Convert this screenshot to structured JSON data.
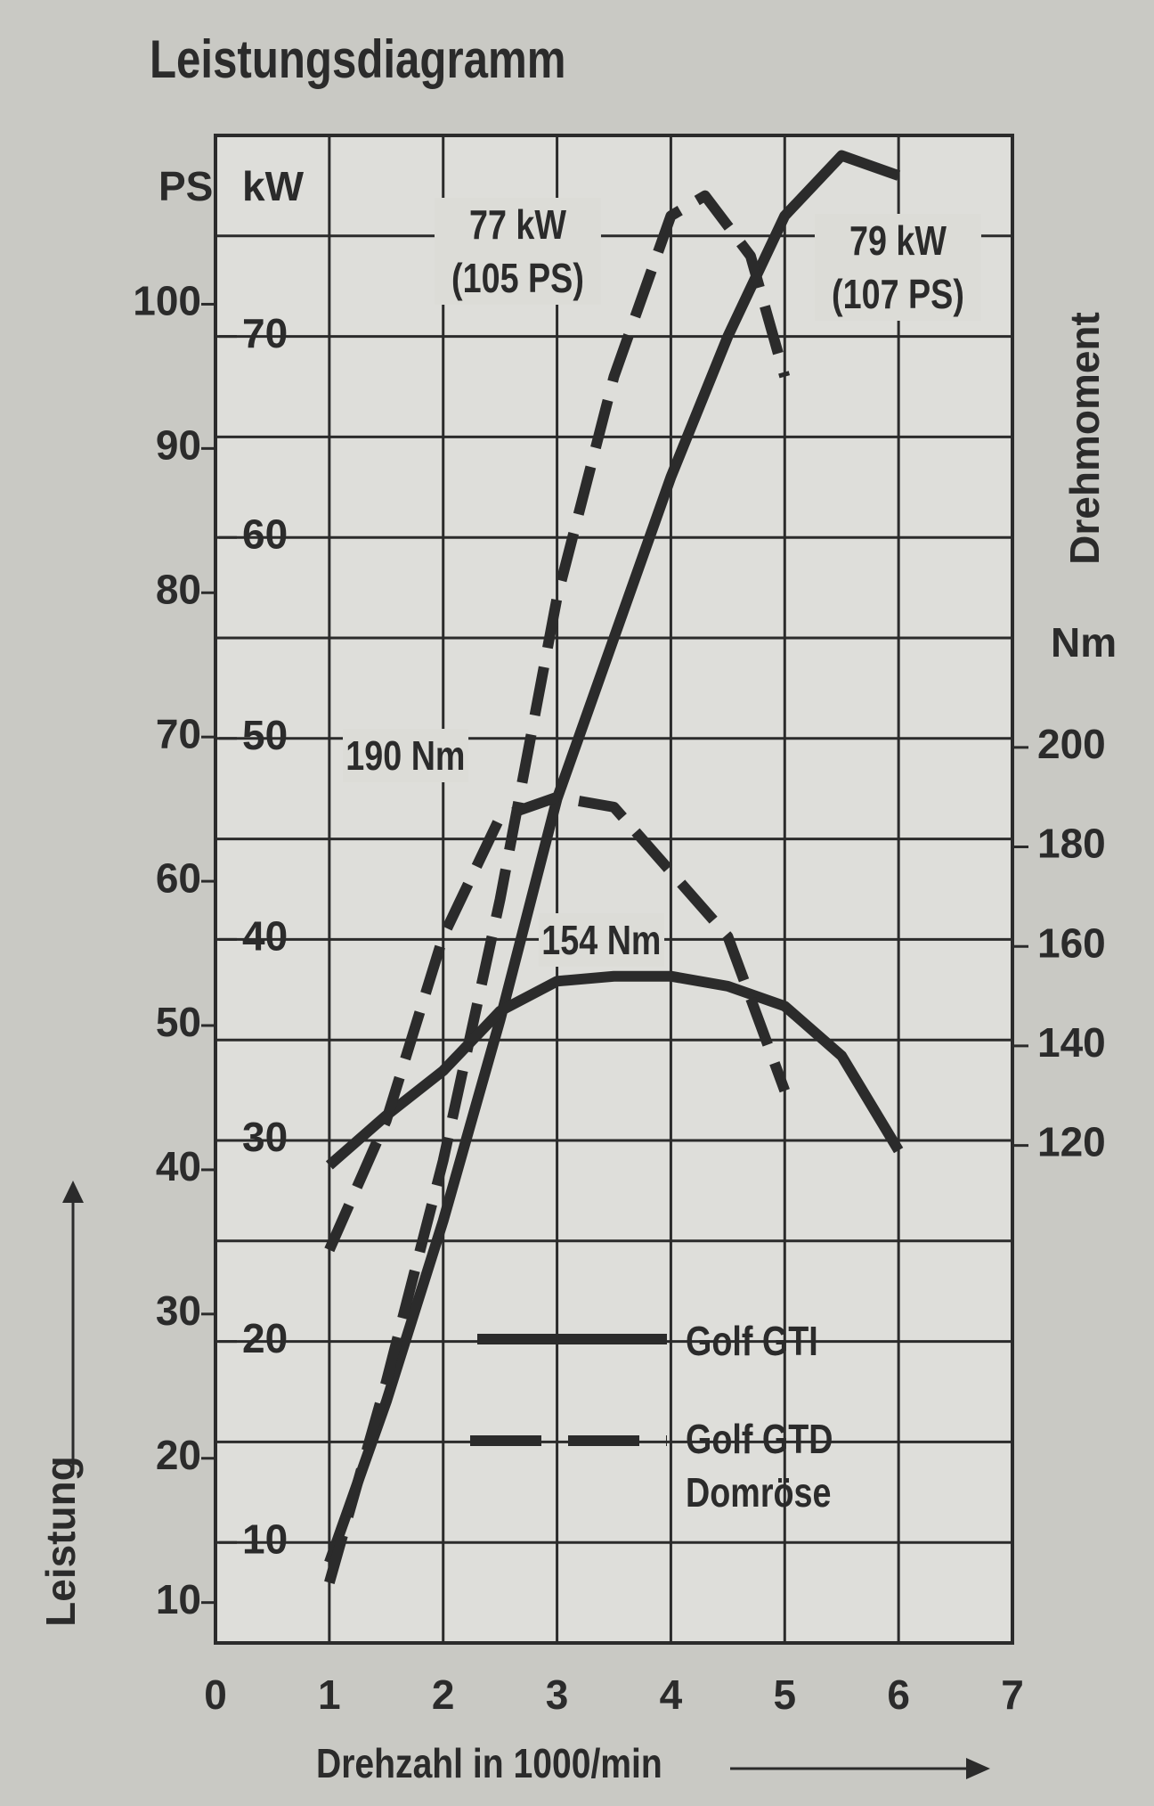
{
  "chart_data": {
    "type": "line",
    "title": "Leistungsdiagramm",
    "xlabel": "Drehzahl in 1000/min",
    "ylabel": "Leistung",
    "y_unit": "kW",
    "ps_unit": "PS",
    "y2_unit": "Nm",
    "y2label": "Drehmoment",
    "xlim": [
      0,
      7
    ],
    "xticks": [
      0,
      1,
      2,
      3,
      4,
      5,
      6,
      7
    ],
    "ylim": [
      5,
      80
    ],
    "yticks": [
      10,
      20,
      30,
      40,
      50,
      60,
      70
    ],
    "ygrid": [
      5,
      10,
      15,
      20,
      25,
      30,
      35,
      40,
      45,
      50,
      55,
      60,
      65,
      70,
      75
    ],
    "pslim": [
      7.2,
      111.7
    ],
    "psticks": [
      10,
      20,
      30,
      40,
      50,
      60,
      70,
      80,
      90,
      100
    ],
    "y2lim": [
      20,
      323
    ],
    "y2ticks": [
      120,
      140,
      160,
      180,
      200
    ],
    "grid": true,
    "annotations": [
      "77 kW (105 PS)",
      "79 kW (107 PS)",
      "190 Nm",
      "154 Nm"
    ],
    "series": [
      {
        "name": "Golf GTI",
        "color": "#2b2b2b",
        "dash": false,
        "axis": "y",
        "x": [
          1,
          1.5,
          2,
          2.5,
          3,
          3.5,
          4,
          4.5,
          5,
          5.5,
          6
        ],
        "values": [
          9,
          17,
          26,
          36,
          47,
          55,
          63,
          70,
          76,
          79,
          78
        ]
      },
      {
        "name": "Golf GTD Domröse",
        "color": "#2b2b2b",
        "dash": true,
        "axis": "y",
        "x": [
          1,
          1.5,
          2,
          2.5,
          3,
          3.5,
          4,
          4.3,
          4.7,
          5
        ],
        "values": [
          8,
          18,
          29,
          42,
          57,
          68,
          76,
          77,
          74,
          68
        ]
      },
      {
        "name": "Golf GTI",
        "color": "#2b2b2b",
        "dash": false,
        "axis": "y2",
        "x": [
          1,
          1.5,
          2,
          2.5,
          3,
          3.5,
          4,
          4.5,
          5,
          5.5,
          6
        ],
        "values": [
          116,
          126,
          135,
          147,
          153,
          154,
          154,
          152,
          148,
          138,
          119
        ]
      },
      {
        "name": "Golf GTD Domröse",
        "color": "#2b2b2b",
        "dash": true,
        "axis": "y2",
        "x": [
          1,
          1.5,
          2,
          2.5,
          3,
          3.5,
          4,
          4.5,
          5
        ],
        "values": [
          99,
          125,
          162,
          186,
          190,
          188,
          175,
          162,
          131
        ]
      }
    ]
  }
}
